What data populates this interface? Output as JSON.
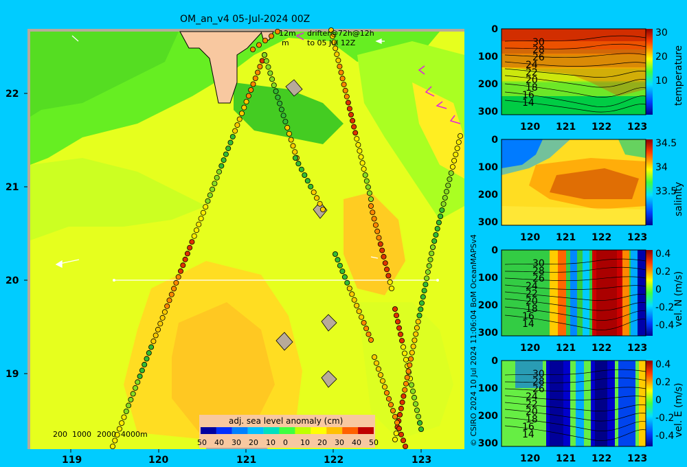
{
  "title": "OM_an_v4  05-Jul-2024 00Z",
  "credit": "© CSIRO 2024   10 Jul 2024 11:06:04 BoM OceanMAPSv4",
  "drifter_legend": {
    "line1_left": "12m",
    "line1_right": "drifter@72h@12h",
    "line2_left": "m",
    "line2_right": "to 05 Jul 12Z"
  },
  "depth_legend": [
    "200",
    "1000",
    "2000",
    "4000m"
  ],
  "colorbar": {
    "label": "adj. sea level anomaly (cm)",
    "ticks": [
      "50",
      "40",
      "30",
      "20",
      "10",
      "0",
      "10",
      "20",
      "30",
      "40",
      "50"
    ],
    "colors": [
      "#0000a0",
      "#0030ff",
      "#0080ff",
      "#00c0ff",
      "#00e0c0",
      "#40ff40",
      "#c0ff00",
      "#ffff00",
      "#ffc000",
      "#ff6000",
      "#c00000"
    ]
  },
  "map": {
    "x_ticks": [
      "119",
      "120",
      "121",
      "122",
      "123"
    ],
    "y_ticks": [
      "22",
      "21",
      "20",
      "19"
    ],
    "section_line": {
      "from": [
        119.5,
        20.0
      ],
      "to": [
        123.2,
        20.0
      ]
    }
  },
  "sections": [
    {
      "label": "temperature",
      "x_ticks": [
        "120",
        "121",
        "122",
        "123"
      ],
      "y_ticks": [
        "0",
        "100",
        "200",
        "300"
      ],
      "cbar_ticks": [
        "30",
        "20",
        "10"
      ],
      "contours": [
        "30",
        "28",
        "26",
        "24",
        "22",
        "20",
        "18",
        "16",
        "14"
      ]
    },
    {
      "label": "salinity",
      "x_ticks": [
        "120",
        "121",
        "122",
        "123"
      ],
      "y_ticks": [
        "0",
        "100",
        "200",
        "300"
      ],
      "cbar_ticks": [
        "34.5",
        "34",
        "33.5"
      ],
      "contours": []
    },
    {
      "label": "vel. N (m/s)",
      "x_ticks": [
        "120",
        "121",
        "122",
        "123"
      ],
      "y_ticks": [
        "0",
        "100",
        "200",
        "300"
      ],
      "cbar_ticks": [
        "0.4",
        "0.2",
        "0",
        "-0.2",
        "-0.4"
      ],
      "contours": [
        "30",
        "28",
        "26",
        "24",
        "22",
        "20",
        "18",
        "16",
        "14"
      ]
    },
    {
      "label": "vel. E (m/s)",
      "x_ticks": [
        "120",
        "121",
        "122",
        "123"
      ],
      "y_ticks": [
        "0",
        "100",
        "200",
        "300"
      ],
      "cbar_ticks": [
        "0.4",
        "0.2",
        "0",
        "-0.2",
        "-0.4"
      ],
      "contours": [
        "30",
        "28",
        "26",
        "24",
        "22",
        "20",
        "18",
        "16",
        "14"
      ]
    }
  ],
  "colors": {
    "background": "#00ccff",
    "land": "#f8c8a0",
    "coast": "#b8aa9a"
  }
}
